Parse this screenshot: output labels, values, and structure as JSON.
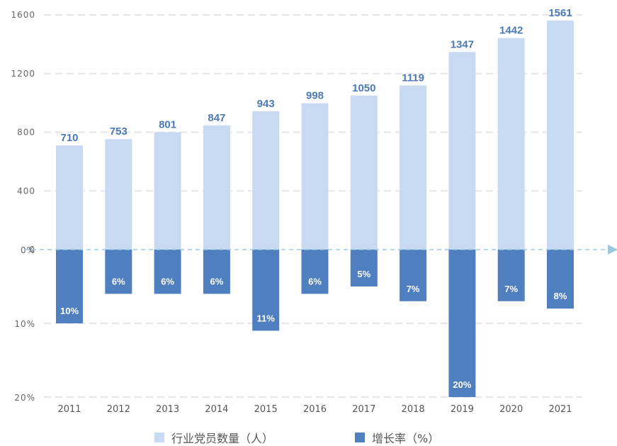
{
  "chart_data": {
    "type": "bar",
    "categories": [
      "2011",
      "2012",
      "2013",
      "2014",
      "2015",
      "2016",
      "2017",
      "2018",
      "2019",
      "2020",
      "2021"
    ],
    "series": [
      {
        "name": "行业党员数量（人）",
        "values": [
          710,
          753,
          801,
          847,
          943,
          998,
          1050,
          1119,
          1347,
          1442,
          1561
        ],
        "labels": [
          "710",
          "753",
          "801",
          "847",
          "943",
          "998",
          "1050",
          "1119",
          "1347",
          "1442",
          "1561"
        ],
        "color": "#c8daf2"
      },
      {
        "name": "增长率（%）",
        "values": [
          10,
          6,
          6,
          6,
          11,
          6,
          5,
          7,
          20,
          7,
          8
        ],
        "labels": [
          "10%",
          "6%",
          "6%",
          "6%",
          "11%",
          "6%",
          "5%",
          "7%",
          "20%",
          "7%",
          "8%"
        ],
        "color": "#4f7fbf"
      }
    ],
    "upper_axis": {
      "ticks": [
        "0",
        "400",
        "800",
        "1200",
        "1600"
      ],
      "tick_values": [
        0,
        400,
        800,
        1200,
        1600
      ],
      "ylim": [
        0,
        1600
      ]
    },
    "lower_axis": {
      "ticks": [
        "0%",
        "10%",
        "20%"
      ],
      "tick_values": [
        0,
        10,
        20
      ],
      "ylim": [
        0,
        20
      ],
      "direction": "downward"
    },
    "grid": true,
    "legend_position": "bottom",
    "zero_line_color": "#9cc8e0"
  }
}
